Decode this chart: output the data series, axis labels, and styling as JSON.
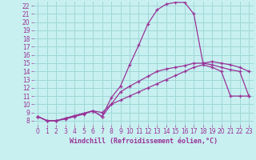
{
  "title": "Windchill (Refroidissement éolien,°C)",
  "bg_color": "#c8f0f0",
  "grid_color": "#a0d8d8",
  "line_color": "#993399",
  "xlim_min": -0.5,
  "xlim_max": 23.5,
  "ylim_min": 7.5,
  "ylim_max": 22.5,
  "xticks": [
    0,
    1,
    2,
    3,
    4,
    5,
    6,
    7,
    8,
    9,
    10,
    11,
    12,
    13,
    14,
    15,
    16,
    17,
    18,
    19,
    20,
    21,
    22,
    23
  ],
  "yticks": [
    8,
    9,
    10,
    11,
    12,
    13,
    14,
    15,
    16,
    17,
    18,
    19,
    20,
    21,
    22
  ],
  "curve1_x": [
    0,
    1,
    2,
    3,
    4,
    5,
    6,
    7,
    8,
    9,
    10,
    11,
    12,
    13,
    14,
    15,
    16,
    17,
    18,
    19,
    20,
    21,
    22,
    23
  ],
  "curve1_y": [
    8.5,
    8.0,
    8.0,
    8.2,
    8.5,
    8.8,
    9.2,
    9.0,
    10.0,
    10.5,
    11.0,
    11.5,
    12.0,
    12.5,
    13.0,
    13.5,
    14.0,
    14.5,
    14.8,
    14.5,
    14.0,
    11.0,
    11.0,
    11.0
  ],
  "curve2_x": [
    0,
    1,
    2,
    3,
    4,
    5,
    6,
    7,
    8,
    9,
    10,
    11,
    12,
    13,
    14,
    15,
    16,
    17,
    18,
    19,
    20,
    21,
    22,
    23
  ],
  "curve2_y": [
    8.5,
    8.0,
    8.0,
    8.3,
    8.6,
    8.9,
    9.2,
    8.5,
    10.0,
    11.5,
    12.2,
    12.8,
    13.4,
    14.0,
    14.3,
    14.5,
    14.7,
    15.0,
    15.0,
    14.8,
    14.5,
    14.2,
    14.0,
    11.0
  ],
  "curve3_x": [
    0,
    1,
    2,
    3,
    4,
    5,
    6,
    7,
    8,
    9,
    10,
    11,
    12,
    13,
    14,
    15,
    16,
    17,
    18,
    19,
    20,
    21,
    22,
    23
  ],
  "curve3_y": [
    8.5,
    8.0,
    8.0,
    8.3,
    8.6,
    8.9,
    9.2,
    8.5,
    10.8,
    12.2,
    14.8,
    17.2,
    19.8,
    21.5,
    22.2,
    22.4,
    22.4,
    21.0,
    15.0,
    15.2,
    15.0,
    14.8,
    14.5,
    14.0
  ],
  "tick_fontsize": 5.5,
  "xlabel_fontsize": 6.0
}
